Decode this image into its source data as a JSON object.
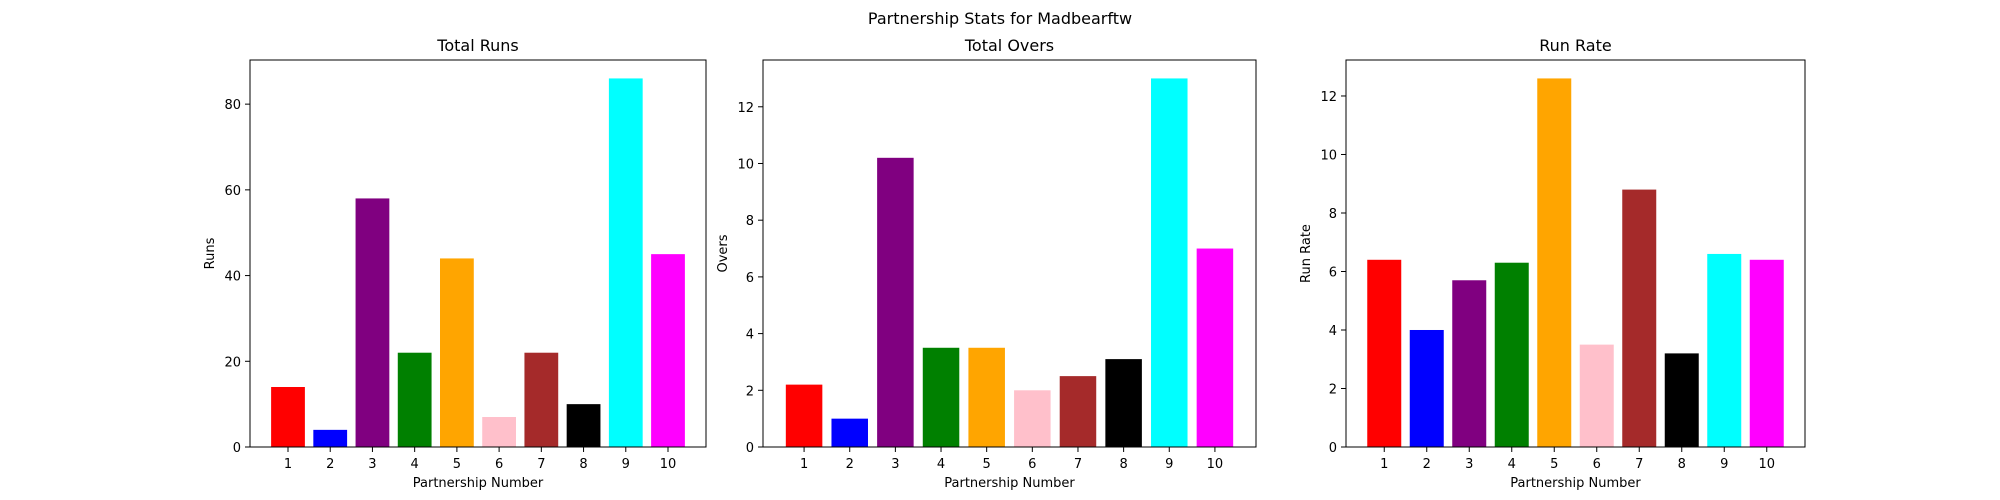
{
  "figure": {
    "suptitle": "Partnership Stats for Madbearftw"
  },
  "colors": [
    "#ff0000",
    "#0000ff",
    "#800080",
    "#008000",
    "#ffa500",
    "#ffc0cb",
    "#a52a2a",
    "#000000",
    "#00ffff",
    "#ff00ff"
  ],
  "chart_data": [
    {
      "type": "bar",
      "title": "Total Runs",
      "xlabel": "Partnership Number",
      "ylabel": "Runs",
      "categories": [
        "1",
        "2",
        "3",
        "4",
        "5",
        "6",
        "7",
        "8",
        "9",
        "10"
      ],
      "values": [
        14,
        4,
        58,
        22,
        44,
        7,
        22,
        10,
        86,
        45
      ],
      "ylim": [
        0,
        90.3
      ],
      "yticks": [
        0,
        20,
        40,
        60,
        80
      ],
      "grid": false
    },
    {
      "type": "bar",
      "title": "Total Overs",
      "xlabel": "Partnership Number",
      "ylabel": "Overs",
      "categories": [
        "1",
        "2",
        "3",
        "4",
        "5",
        "6",
        "7",
        "8",
        "9",
        "10"
      ],
      "values": [
        2.2,
        1.0,
        10.2,
        3.5,
        3.5,
        2.0,
        2.5,
        3.1,
        13.0,
        7.0
      ],
      "ylim": [
        0,
        13.65
      ],
      "yticks": [
        0,
        2,
        4,
        6,
        8,
        10,
        12
      ],
      "grid": false
    },
    {
      "type": "bar",
      "title": "Run Rate",
      "xlabel": "Partnership Number",
      "ylabel": "Run Rate",
      "categories": [
        "1",
        "2",
        "3",
        "4",
        "5",
        "6",
        "7",
        "8",
        "9",
        "10"
      ],
      "values": [
        6.4,
        4.0,
        5.7,
        6.3,
        12.6,
        3.5,
        8.8,
        3.2,
        6.6,
        6.4
      ],
      "ylim": [
        0,
        13.23
      ],
      "yticks": [
        0,
        2,
        4,
        6,
        8,
        10,
        12
      ],
      "grid": false
    }
  ]
}
